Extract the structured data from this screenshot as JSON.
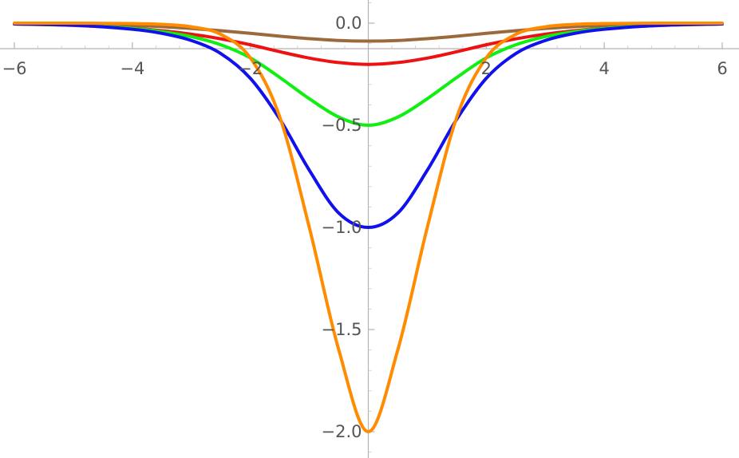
{
  "chart_data": {
    "type": "line",
    "title": "",
    "xlabel": "",
    "ylabel": "",
    "xlim": [
      -6,
      6
    ],
    "ylim": [
      -2.0,
      0.0
    ],
    "grid": false,
    "legend": "none",
    "x_ticks": [
      -6,
      -4,
      -2,
      2,
      4,
      6
    ],
    "x_tick_labels": [
      "−6",
      "−4",
      "−2",
      "2",
      "4",
      "6"
    ],
    "y_ticks": [
      0.0,
      -0.5,
      -1.0,
      -1.5,
      -2.0
    ],
    "y_tick_labels": [
      "0.0",
      "−0.5",
      "−1.0",
      "−1.5",
      "−2.0"
    ],
    "x": [
      -6,
      -5,
      -4,
      -3.5,
      -3,
      -2.5,
      -2,
      -1.5,
      -1,
      -0.5,
      0,
      0.5,
      1,
      1.5,
      2,
      2.5,
      3,
      3.5,
      4,
      5,
      6
    ],
    "series": [
      {
        "color": "#9b6a3c",
        "values": [
          -0.002,
          -0.005,
          -0.011,
          -0.017,
          -0.026,
          -0.037,
          -0.05,
          -0.064,
          -0.076,
          -0.085,
          -0.088,
          -0.085,
          -0.076,
          -0.064,
          -0.05,
          -0.037,
          -0.026,
          -0.017,
          -0.011,
          -0.005,
          -0.002
        ]
      },
      {
        "color": "#ee1111",
        "values": [
          -0.004,
          -0.011,
          -0.025,
          -0.037,
          -0.054,
          -0.077,
          -0.106,
          -0.14,
          -0.171,
          -0.193,
          -0.202,
          -0.193,
          -0.171,
          -0.14,
          -0.106,
          -0.077,
          -0.054,
          -0.037,
          -0.025,
          -0.011,
          -0.004
        ]
      },
      {
        "color": "#11ee11",
        "values": [
          -0.004,
          -0.01,
          -0.026,
          -0.042,
          -0.066,
          -0.106,
          -0.17,
          -0.266,
          -0.37,
          -0.46,
          -0.5,
          -0.46,
          -0.37,
          -0.266,
          -0.17,
          -0.106,
          -0.066,
          -0.042,
          -0.026,
          -0.01,
          -0.004
        ]
      },
      {
        "color": "#1111ee",
        "values": [
          -0.004,
          -0.01,
          -0.03,
          -0.05,
          -0.085,
          -0.149,
          -0.27,
          -0.47,
          -0.72,
          -0.93,
          -1.0,
          -0.93,
          -0.72,
          -0.47,
          -0.27,
          -0.149,
          -0.085,
          -0.05,
          -0.03,
          -0.01,
          -0.004
        ]
      },
      {
        "color": "#ff8c00",
        "values": [
          0.0,
          0.0,
          -0.002,
          -0.006,
          -0.018,
          -0.055,
          -0.17,
          -0.46,
          -1.0,
          -1.6,
          -2.0,
          -1.6,
          -1.0,
          -0.46,
          -0.17,
          -0.055,
          -0.018,
          -0.006,
          -0.002,
          0.0,
          0.0
        ]
      }
    ]
  }
}
